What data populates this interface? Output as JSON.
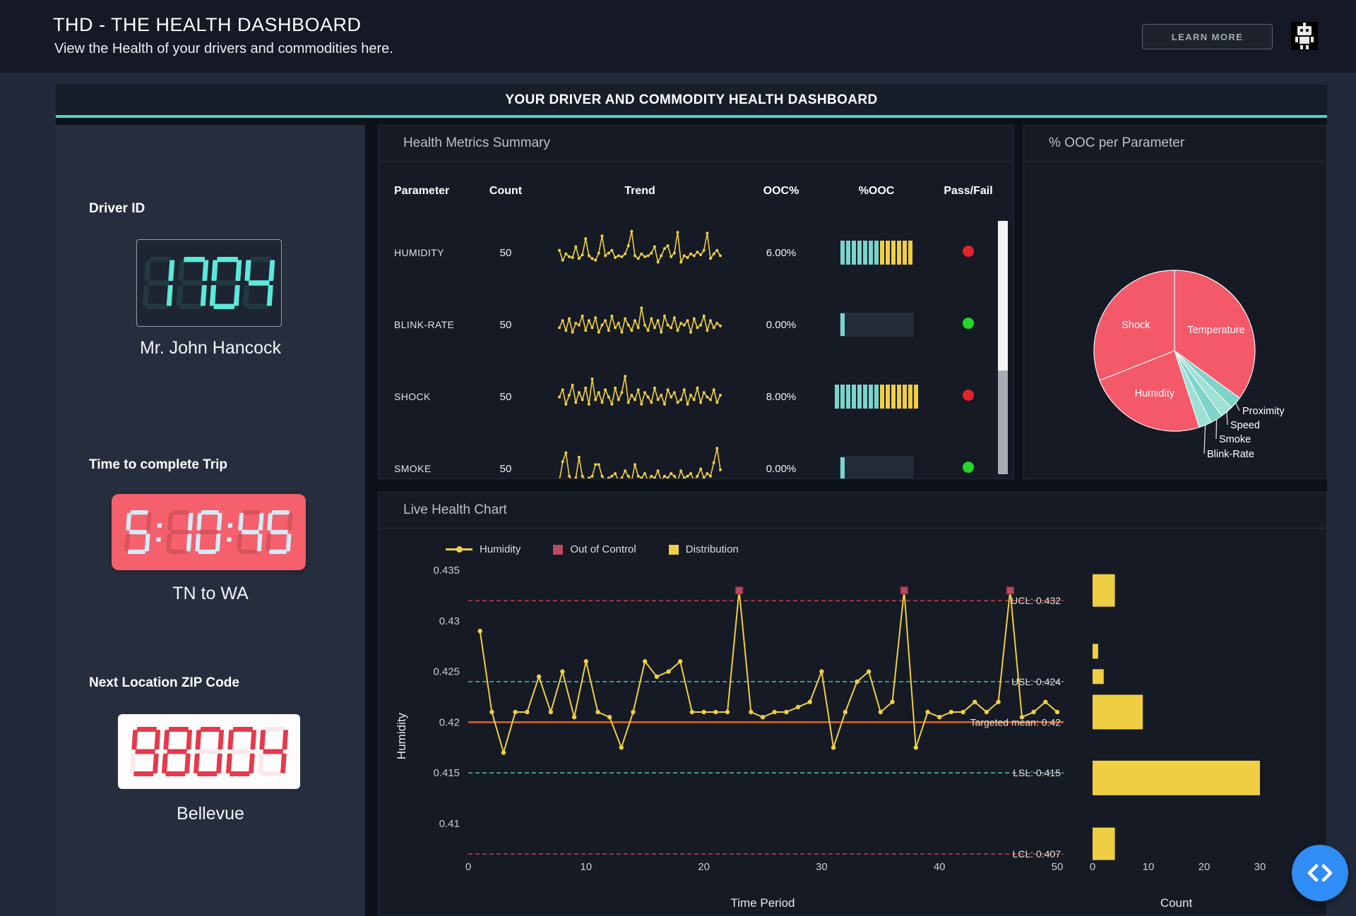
{
  "header": {
    "title": "THD - THE HEALTH DASHBOARD",
    "subtitle": "View the Health of your drivers and commodities here.",
    "learn_more_label": "LEARN MORE"
  },
  "banner": {
    "title": "YOUR DRIVER AND COMMODITY HEALTH DASHBOARD"
  },
  "sidebar": {
    "driver_id_label": "Driver ID",
    "driver_id_value": "1704",
    "driver_name": "Mr. John Hancock",
    "trip_time_label": "Time to complete Trip",
    "trip_time_value": "5:10:45",
    "trip_route": "TN to WA",
    "zip_label": "Next Location ZIP Code",
    "zip_value": "98004",
    "zip_city": "Bellevue"
  },
  "metrics_panel": {
    "title": "Health Metrics Summary",
    "columns": [
      "Parameter",
      "Count",
      "Trend",
      "OOC%",
      "%OOC",
      "Pass/Fail"
    ],
    "rows": [
      {
        "parameter": "HUMIDITY",
        "count": "50",
        "ooc_pct": "6.00%",
        "gauge": {
          "teal": 7,
          "yellow": 6,
          "track": false
        },
        "pass": "fail"
      },
      {
        "parameter": "BLINK-RATE",
        "count": "50",
        "ooc_pct": "0.00%",
        "gauge": {
          "teal": 1,
          "yellow": 0,
          "track": true
        },
        "pass": "pass"
      },
      {
        "parameter": "SHOCK",
        "count": "50",
        "ooc_pct": "8.00%",
        "gauge": {
          "teal": 8,
          "yellow": 7,
          "track": false
        },
        "pass": "fail"
      },
      {
        "parameter": "SMOKE",
        "count": "50",
        "ooc_pct": "0.00%",
        "gauge": {
          "teal": 1,
          "yellow": 0,
          "track": true
        },
        "pass": "pass"
      }
    ]
  },
  "pie_panel": {
    "title": "% OOC per Parameter"
  },
  "live_panel": {
    "title": "Live Health Chart"
  },
  "colors": {
    "yellow": "#efce44",
    "teal_accent": "#45d6c6",
    "gauge_teal": "#79d5cb",
    "pass_green": "#23d62a",
    "fail_red": "#e6212e",
    "ooc_marker": "#bb4a5e",
    "pie_red": "#f4596a",
    "pie_teal": "#7fd4c9"
  },
  "chart_data": [
    {
      "name": "ooc_per_parameter_pie",
      "type": "pie",
      "title": "% OOC per Parameter",
      "labels": [
        "Temperature",
        "Proximity",
        "Speed",
        "Smoke",
        "Blink-Rate",
        "Humidity",
        "Shock"
      ],
      "values": [
        35,
        2.5,
        2.5,
        2.5,
        2.5,
        24,
        31
      ],
      "colors": [
        "#f4596a",
        "#7fd4c9",
        "#9ce0d6",
        "#7fd4c9",
        "#9ce0d6",
        "#f4596a",
        "#f4596a"
      ],
      "label_placement": [
        "inside",
        "outside",
        "outside",
        "outside",
        "outside",
        "inside",
        "inside"
      ]
    },
    {
      "name": "live_health_chart",
      "type": "line",
      "title": "Live Health Chart",
      "xlabel": "Time Period",
      "ylabel": "Humidity",
      "xlim": [
        0,
        50
      ],
      "xticks": [
        0,
        10,
        20,
        30,
        40,
        50
      ],
      "yticks": [
        0.435,
        0.43,
        0.425,
        0.42,
        0.415,
        0.41
      ],
      "legend": [
        "Humidity",
        "Out of Control",
        "Distribution"
      ],
      "series": [
        {
          "name": "Humidity",
          "color": "#efce44",
          "values": [
            0.429,
            0.421,
            0.417,
            0.421,
            0.421,
            0.4245,
            0.421,
            0.425,
            0.4205,
            0.426,
            0.421,
            0.4205,
            0.4175,
            0.421,
            0.426,
            0.4245,
            0.425,
            0.426,
            0.421,
            0.421,
            0.421,
            0.421,
            0.433,
            0.421,
            0.4205,
            0.421,
            0.421,
            0.4215,
            0.422,
            0.425,
            0.4175,
            0.421,
            0.424,
            0.425,
            0.421,
            0.422,
            0.433,
            0.4175,
            0.421,
            0.4205,
            0.421,
            0.421,
            0.422,
            0.421,
            0.422,
            0.433,
            0.4205,
            0.421,
            0.422,
            0.421
          ]
        }
      ],
      "out_of_control_points": [
        23,
        37,
        46
      ],
      "control_lines": [
        {
          "label": "UCL: 0.432",
          "value": 0.432,
          "style": "dashed",
          "color": "#c0463c"
        },
        {
          "label": "USL: 0.424",
          "value": 0.424,
          "style": "dashed",
          "color": "#57bdb3"
        },
        {
          "label": "Targeted mean: 0.42",
          "value": 0.42,
          "style": "solid",
          "color": "#e2622b"
        },
        {
          "label": "LSL: 0.415",
          "value": 0.415,
          "style": "dashed",
          "color": "#57bdb3"
        },
        {
          "label": "LCL: 0.407",
          "value": 0.407,
          "style": "dashed",
          "color": "#c0463c"
        }
      ]
    },
    {
      "name": "humidity_distribution",
      "type": "bar",
      "orientation": "horizontal",
      "xlabel": "Count",
      "xticks": [
        0,
        10,
        20,
        30
      ],
      "bins": [
        {
          "value": 0.433,
          "count": 4
        },
        {
          "value": 0.427,
          "count": 1
        },
        {
          "value": 0.4245,
          "count": 2
        },
        {
          "value": 0.421,
          "count": 9
        },
        {
          "value": 0.4145,
          "count": 30
        },
        {
          "value": 0.408,
          "count": 4
        }
      ]
    },
    {
      "name": "trend_sparklines",
      "type": "line",
      "series": [
        {
          "name": "HUMIDITY",
          "values": [
            52,
            30,
            44,
            38,
            36,
            60,
            34,
            42,
            78,
            40,
            34,
            30,
            46,
            84,
            40,
            46,
            52,
            36,
            40,
            38,
            44,
            62,
            94,
            40,
            34,
            44,
            38,
            40,
            46,
            60,
            26,
            40,
            56,
            62,
            38,
            46,
            92,
            26,
            40,
            36,
            44,
            40,
            48,
            42,
            52,
            90,
            34,
            44,
            52,
            40
          ]
        },
        {
          "name": "BLINK-RATE",
          "values": [
            40,
            56,
            34,
            60,
            30,
            50,
            46,
            66,
            34,
            56,
            40,
            62,
            30,
            46,
            56,
            34,
            66,
            40,
            50,
            30,
            60,
            46,
            34,
            56,
            40,
            84,
            46,
            34,
            60,
            40,
            56,
            30,
            66,
            46,
            40,
            62,
            34,
            50,
            46,
            56,
            30,
            60,
            40,
            46,
            66,
            34,
            56,
            40,
            50,
            44
          ]
        },
        {
          "name": "SHOCK",
          "values": [
            46,
            62,
            30,
            50,
            72,
            34,
            56,
            40,
            66,
            30,
            86,
            40,
            56,
            34,
            62,
            46,
            30,
            66,
            40,
            56,
            92,
            34,
            50,
            40,
            62,
            30,
            56,
            46,
            34,
            66,
            40,
            50,
            30,
            62,
            46,
            56,
            34,
            40,
            62,
            30,
            50,
            40,
            66,
            34,
            56,
            46,
            40,
            62,
            34,
            50
          ]
        },
        {
          "name": "SMOKE",
          "values": [
            20,
            62,
            82,
            30,
            20,
            26,
            72,
            30,
            20,
            26,
            30,
            56,
            56,
            30,
            20,
            26,
            30,
            36,
            20,
            26,
            42,
            30,
            20,
            56,
            30,
            26,
            36,
            20,
            30,
            26,
            42,
            20,
            30,
            26,
            36,
            30,
            20,
            42,
            26,
            30,
            36,
            20,
            30,
            46,
            26,
            36,
            30,
            60,
            92,
            44
          ]
        }
      ]
    }
  ]
}
